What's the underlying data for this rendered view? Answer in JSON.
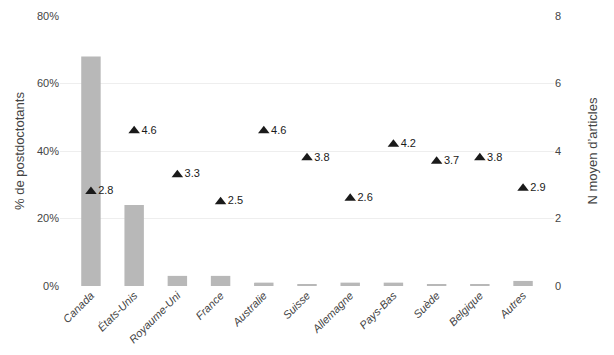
{
  "chart_data": {
    "type": "bar",
    "categories": [
      "Canada",
      "États-Unis",
      "Royaume-Uni",
      "France",
      "Australie",
      "Suisse",
      "Allemagne",
      "Pays-Bas",
      "Suède",
      "Belgique",
      "Autres"
    ],
    "series": [
      {
        "type": "bar",
        "color": "#b8b8b8",
        "values": [
          68,
          24,
          3,
          3,
          1,
          0.5,
          1,
          1,
          0.5,
          0.5,
          1.5
        ]
      },
      {
        "type": "scatter",
        "axis": "y2",
        "marker": "triangle-up",
        "color": "#1a1a1a",
        "data_labels": true,
        "values": [
          2.8,
          4.6,
          3.3,
          2.5,
          4.6,
          3.8,
          2.6,
          4.2,
          3.7,
          3.8,
          2.9
        ]
      }
    ],
    "ylabel": "% de postdoctotants",
    "y2label": "N moyen d’articles",
    "ylim": [
      0,
      80
    ],
    "yticks": [
      {
        "value": 0,
        "label": "0%"
      },
      {
        "value": 20,
        "label": "20%"
      },
      {
        "value": 40,
        "label": "40%"
      },
      {
        "value": 60,
        "label": "60%"
      },
      {
        "value": 80,
        "label": "80%"
      }
    ],
    "y2lim": [
      0,
      8
    ],
    "y2ticks": [
      0,
      2,
      4,
      6,
      8
    ],
    "grid": true
  }
}
